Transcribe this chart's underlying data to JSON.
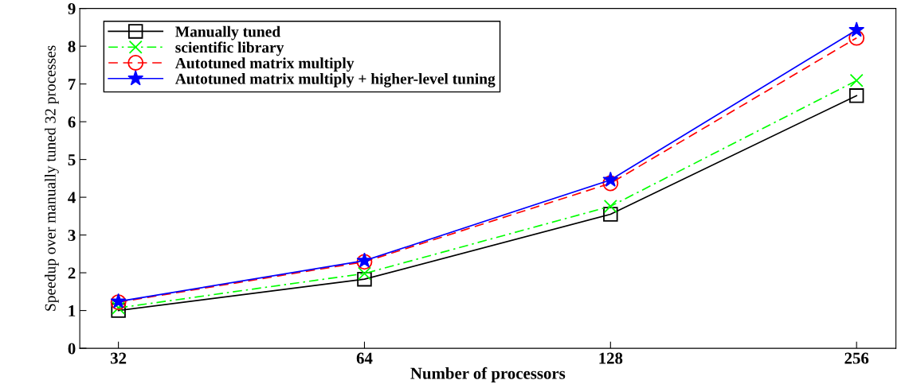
{
  "chart_data": {
    "type": "line",
    "xlabel": "Number of processors",
    "ylabel": "Speedup over manually tuned 32 processes",
    "x": [
      32,
      64,
      128,
      256
    ],
    "log": "x",
    "xlim": [
      28.7,
      286
    ],
    "xticks": [
      32,
      64,
      128,
      256
    ],
    "ylim": [
      0,
      9
    ],
    "yticks": [
      0,
      1,
      2,
      3,
      4,
      5,
      6,
      7,
      8,
      9
    ],
    "grid": false,
    "legend": "top left",
    "series": [
      {
        "name": "Manually tuned",
        "color": "#000000",
        "marker": "square",
        "line_style": "solid",
        "values": [
          1.0,
          1.83,
          3.55,
          6.69
        ]
      },
      {
        "name": "scientific library",
        "color": "#00ff00",
        "marker": "cross",
        "line_style": "dashdot",
        "values": [
          1.07,
          1.98,
          3.76,
          7.09
        ]
      },
      {
        "name": "Autotuned matrix multiply",
        "color": "#ff0000",
        "marker": "circle",
        "line_style": "dashed",
        "values": [
          1.22,
          2.29,
          4.37,
          8.22
        ]
      },
      {
        "name": "Autotuned matrix multiply + higher-level tuning",
        "color": "#0000ff",
        "marker": "star",
        "line_style": "solid",
        "values": [
          1.24,
          2.32,
          4.46,
          8.43
        ]
      }
    ]
  }
}
